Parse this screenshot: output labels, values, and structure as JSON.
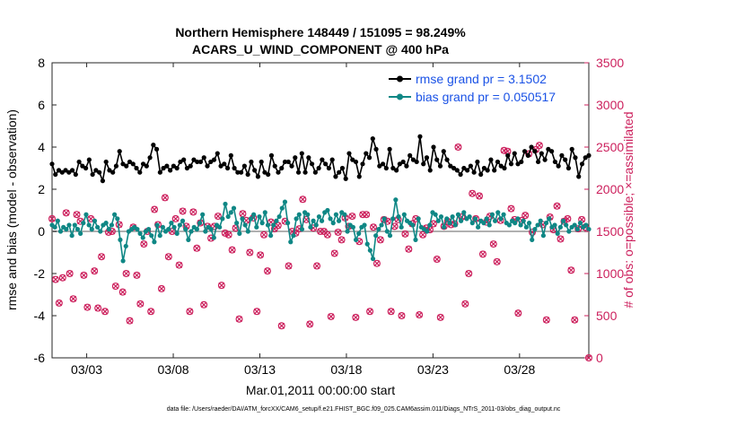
{
  "chart_data": {
    "type": "line",
    "title": "Northern Hemisphere 148449 / 151095 = 98.249%",
    "subtitle": "ACARS_U_WIND_COMPONENT @ 400 hPa",
    "xlabel": "Mar.01,2011 00:00:00 start",
    "ylabel": "rmse and bias (model - observation)",
    "y2label": "# of obs: o=possible; ×=assimilated",
    "footnote": "data file: /Users/raeder/DAI/ATM_forcXX/CAM6_setup/f.e21.FHIST_BGC.f09_025.CAM6assim.011/Diags_NTrS_2011-03/obs_diag_output.nc",
    "xlim": [
      1.0,
      32.0
    ],
    "ylim": [
      -6,
      8
    ],
    "y2lim": [
      0,
      3500
    ],
    "grid": false,
    "legend_position": "top-right",
    "colors": {
      "rmse": "#000000",
      "bias": "#0f8785",
      "obs": "#cc1f5c",
      "zero_line": "#b0b0b0"
    },
    "x_ticks": [
      {
        "value": 3,
        "label": "03/03"
      },
      {
        "value": 8,
        "label": "03/08"
      },
      {
        "value": 13,
        "label": "03/13"
      },
      {
        "value": 18,
        "label": "03/18"
      },
      {
        "value": 23,
        "label": "03/23"
      },
      {
        "value": 28,
        "label": "03/28"
      }
    ],
    "y_ticks": [
      "-6",
      "-4",
      "-2",
      "0",
      "2",
      "4",
      "6",
      "8"
    ],
    "y2_ticks": [
      "0",
      "500",
      "1000",
      "1500",
      "2000",
      "2500",
      "3000",
      "3500"
    ],
    "series": [
      {
        "name": "rmse grand pr = 3.1502",
        "values": [
          3.2,
          2.7,
          2.9,
          2.8,
          2.9,
          2.8,
          2.9,
          2.7,
          3.3,
          3.1,
          3.0,
          3.4,
          2.7,
          2.9,
          2.8,
          2.4,
          3.3,
          2.9,
          2.8,
          3.1,
          3.8,
          3.2,
          3.1,
          3.3,
          3.2,
          3.0,
          2.8,
          3.2,
          3.1,
          3.5,
          4.1,
          3.9,
          2.8,
          3.0,
          3.1,
          2.9,
          3.1,
          3.0,
          3.3,
          3.4,
          3.0,
          3.1,
          3.4,
          3.3,
          3.3,
          3.5,
          3.1,
          3.3,
          3.4,
          3.7,
          3.1,
          3.2,
          3.0,
          3.6,
          3.0,
          2.8,
          2.8,
          3.1,
          2.7,
          3.3,
          2.9,
          2.6,
          3.3,
          2.8,
          2.7,
          3.6,
          3.1,
          2.8,
          3.0,
          3.3,
          3.3,
          3.1,
          3.5,
          2.8,
          3.7,
          2.8,
          3.5,
          3.2,
          2.8,
          3.0,
          3.4,
          3.2,
          3.0,
          3.4,
          2.6,
          2.8,
          3.0,
          2.5,
          3.7,
          3.4,
          3.3,
          2.6,
          3.2,
          3.7,
          3.5,
          4.4,
          3.9,
          3.1,
          3.2,
          3.0,
          3.9,
          3.0,
          2.9,
          3.2,
          3.3,
          3.1,
          3.6,
          3.4,
          3.3,
          4.5,
          3.2,
          3.5,
          2.9,
          4.0,
          3.4,
          3.1,
          3.8,
          3.4,
          3.1,
          3.0,
          2.9,
          2.7,
          3.0,
          2.9,
          3.1,
          2.8,
          3.3,
          2.7,
          3.0,
          2.9,
          3.4,
          2.9,
          3.3,
          3.1,
          3.0,
          3.6,
          3.2,
          3.7,
          3.2,
          3.3,
          3.8,
          3.6,
          4.0,
          3.8,
          3.3,
          3.7,
          3.4,
          3.9,
          3.8,
          3.3,
          3.1,
          3.6,
          3.4,
          3.0,
          3.9,
          3.5,
          2.6,
          3.2,
          3.5,
          3.6
        ]
      },
      {
        "name": "bias grand pr = 0.050517",
        "values": [
          0.3,
          0.2,
          0.5,
          0.0,
          0.2,
          0.1,
          0.3,
          -0.2,
          0.3,
          0.1,
          -0.1,
          0.4,
          0.8,
          0.3,
          0.1,
          0.5,
          0.2,
          0.0,
          0.3,
          0.4,
          0.1,
          0.3,
          0.8,
          0.6,
          -0.4,
          -1.4,
          -0.7,
          0.0,
          0.1,
          0.2,
          0.1,
          -0.1,
          -0.3,
          0.0,
          0.1,
          -0.2,
          -0.5,
          0.3,
          -0.2,
          0.2,
          0.0,
          0.1,
          0.4,
          0.2,
          -0.1,
          0.3,
          0.5,
          0.1,
          -0.4,
          0.0,
          0.2,
          0.1,
          0.4,
          0.8,
          0.0,
          0.2,
          0.1,
          -0.3,
          0.3,
          0.2,
          0.6,
          1.3,
          0.7,
          0.9,
          1.1,
          0.4,
          -0.1,
          0.6,
          0.3,
          0.0,
          0.6,
          0.8,
          0.2,
          0.7,
          0.4,
          0.9,
          0.3,
          -0.2,
          0.3,
          0.5,
          0.7,
          1.1,
          1.4,
          0.4,
          -0.5,
          -0.2,
          0.6,
          0.8,
          0.1,
          0.9,
          0.8,
          0.2,
          0.5,
          0.3,
          0.7,
          0.5,
          0.9,
          1.0,
          0.6,
          0.4,
          0.8,
          0.5,
          0.9,
          0.8,
          0.0,
          0.3,
          0.2,
          -0.4,
          -0.1,
          0.2,
          0.3,
          -0.6,
          -0.9,
          -1.3,
          -0.2,
          0.1,
          0.3,
          0.6,
          0.0,
          -0.2,
          0.6,
          1.5,
          0.7,
          0.2,
          0.8,
          0.5,
          0.4,
          0.3,
          -0.4,
          0.6,
          0.2,
          0.1,
          0.0,
          0.3,
          0.9,
          0.8,
          0.5,
          0.7,
          0.2,
          0.6,
          0.4,
          0.7,
          0.3,
          0.8,
          0.5,
          0.9,
          0.6,
          0.7,
          0.4,
          0.6,
          0.2,
          0.5,
          0.4,
          0.6,
          0.3,
          0.8,
          0.5,
          0.9,
          0.6,
          0.8,
          0.4,
          0.3,
          0.5,
          0.4,
          0.6,
          0.3,
          0.5,
          0.2,
          0.4,
          -0.4,
          0.1,
          0.3,
          0.5,
          -0.2,
          0.4,
          0.6,
          0.2,
          0.3,
          -0.1,
          0.2,
          0.5,
          0.3,
          0.0,
          0.2,
          0.3,
          0.1,
          0.4,
          0.2,
          0.3,
          0.1
        ]
      }
    ],
    "obs_possible": [
      1650,
      930,
      650,
      950,
      1720,
      1000,
      700,
      1700,
      1620,
      980,
      600,
      1650,
      1030,
      590,
      1200,
      550,
      1490,
      1500,
      850,
      1580,
      780,
      1000,
      440,
      1550,
      980,
      640,
      1350,
      1500,
      550,
      1760,
      1580,
      820,
      1900,
      1200,
      1500,
      1650,
      1100,
      1740,
      1560,
      550,
      1730,
      1300,
      1600,
      630,
      1560,
      1420,
      1560,
      1680,
      860,
      1480,
      1460,
      1280,
      1540,
      460,
      1710,
      1630,
      1250,
      1660,
      550,
      1220,
      1460,
      1030,
      1610,
      1530,
      1570,
      380,
      1620,
      1090,
      1500,
      1480,
      1530,
      1880,
      1640,
      400,
      1540,
      1090,
      1500,
      1500,
      1460,
      490,
      1240,
      1490,
      1400,
      1660,
      1560,
      1680,
      480,
      1380,
      1700,
      1700,
      550,
      1550,
      1120,
      1400,
      1640,
      1620,
      550,
      1560,
      1640,
      500,
      1470,
      1290,
      1590,
      1650,
      510,
      1460,
      1540,
      1520,
      1590,
      1170,
      480,
      1560,
      1620,
      1580,
      1590,
      2500,
      1670,
      640,
      1000,
      1950,
      1650,
      1920,
      1230,
      1610,
      1680,
      1350,
      1140,
      1630,
      2460,
      2450,
      1770,
      1640,
      530,
      1630,
      1690,
      2420,
      1490,
      2470,
      2520,
      1580,
      450,
      1670,
      1520,
      1800,
      1410,
      1620,
      1650,
      1040,
      450,
      1530,
      1640,
      1550,
      0
    ]
  }
}
